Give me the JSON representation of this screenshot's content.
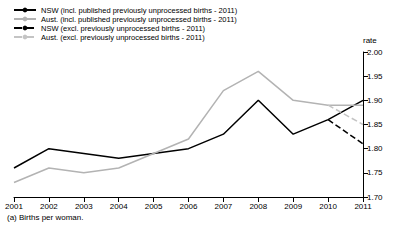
{
  "chart_data": {
    "type": "line",
    "categories": [
      "2001",
      "2002",
      "2003",
      "2004",
      "2005",
      "2006",
      "2007",
      "2008",
      "2009",
      "2010",
      "2011"
    ],
    "series": [
      {
        "name": "NSW (incl. published previously unprocessed births - 2011)",
        "color": "#000000",
        "line_style": "solid",
        "marker": "none",
        "values": [
          1.76,
          1.8,
          1.79,
          1.78,
          1.79,
          1.8,
          1.83,
          1.9,
          1.83,
          1.86,
          1.9
        ]
      },
      {
        "name": "Aust. (incl. published previously unprocessed births - 2011)",
        "color": "#b3b3b3",
        "line_style": "solid",
        "marker": "none",
        "values": [
          1.73,
          1.76,
          1.75,
          1.76,
          1.79,
          1.82,
          1.92,
          1.96,
          1.9,
          1.89,
          1.89
        ]
      },
      {
        "name": "NSW (excl. previously unprocessed births - 2011)",
        "color": "#000000",
        "line_style": "dashed",
        "marker": "none",
        "values": [
          null,
          null,
          null,
          null,
          null,
          null,
          null,
          null,
          null,
          1.86,
          1.81
        ]
      },
      {
        "name": "Aust. (excl. previously unprocessed births - 2011)",
        "color": "#c4c4c4",
        "line_style": "dashed",
        "marker": "none",
        "values": [
          null,
          null,
          null,
          null,
          null,
          null,
          null,
          null,
          null,
          1.89,
          1.85
        ]
      }
    ],
    "ylabel": "rate",
    "ylim": [
      1.7,
      2.0
    ],
    "yticks": [
      {
        "value": 1.7,
        "label": "1.70"
      },
      {
        "value": 1.75,
        "label": "1.75"
      },
      {
        "value": 1.8,
        "label": "1.80"
      },
      {
        "value": 1.85,
        "label": "1.85"
      },
      {
        "value": 1.9,
        "label": "1.90"
      },
      {
        "value": 1.95,
        "label": "1.95"
      },
      {
        "value": 2.0,
        "label": "2.00"
      }
    ],
    "annotations": [
      "(a) Births per woman."
    ],
    "grid": false,
    "legend": "top"
  }
}
